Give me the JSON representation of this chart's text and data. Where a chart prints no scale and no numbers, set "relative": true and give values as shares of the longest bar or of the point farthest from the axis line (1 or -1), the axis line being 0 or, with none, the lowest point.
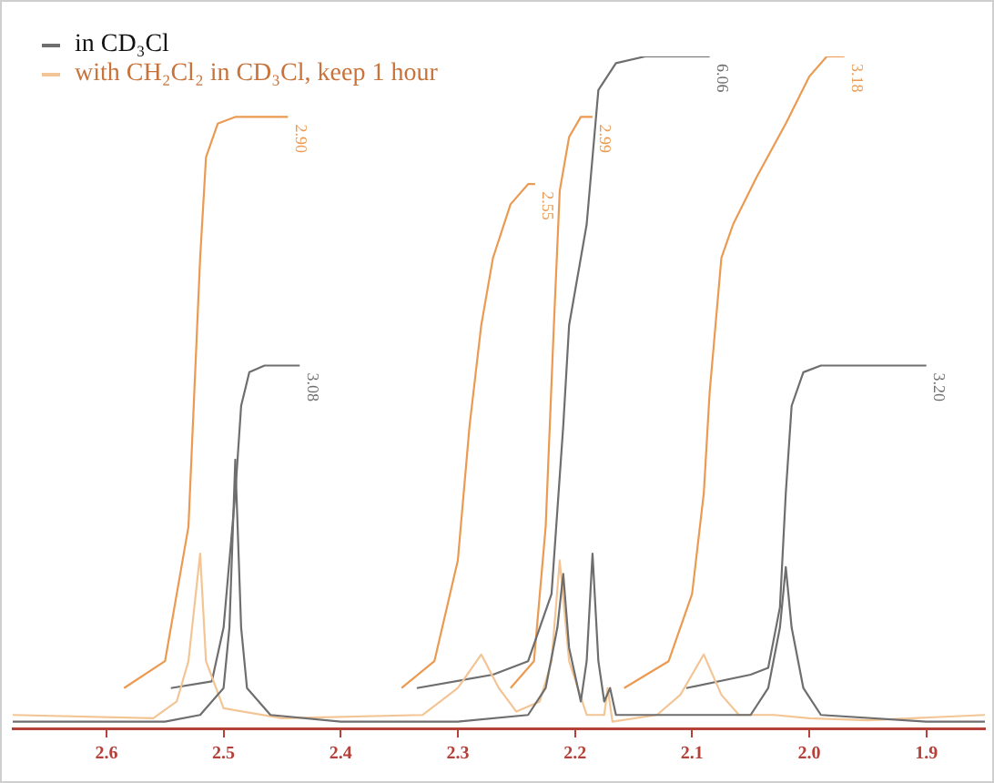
{
  "chart_data": {
    "type": "line",
    "relative": true,
    "legend": "top left",
    "xlim": [
      2.68,
      1.85
    ],
    "xticks": [
      2.6,
      2.5,
      2.4,
      2.3,
      2.2,
      2.1,
      {
        "value": 2,
        "label": "2.0"
      },
      1.9
    ],
    "series": [
      {
        "name": "in CD₃Cl",
        "color": "#6e6e6e",
        "x": [
          2.68,
          2.55,
          2.52,
          2.5,
          2.495,
          2.49,
          2.485,
          2.48,
          2.46,
          2.4,
          2.3,
          2.24,
          2.225,
          2.215,
          2.21,
          2.205,
          2.195,
          2.19,
          2.185,
          2.18,
          2.175,
          2.17,
          2.165,
          2.12,
          2.05,
          2.035,
          2.025,
          2.02,
          2.015,
          2.005,
          1.99,
          1.9,
          1.85
        ],
        "values": [
          0.01,
          0.01,
          0.02,
          0.06,
          0.15,
          0.4,
          0.15,
          0.06,
          0.02,
          0.01,
          0.01,
          0.02,
          0.06,
          0.15,
          0.23,
          0.12,
          0.04,
          0.1,
          0.26,
          0.1,
          0.04,
          0.06,
          0.02,
          0.02,
          0.02,
          0.06,
          0.15,
          0.24,
          0.15,
          0.06,
          0.02,
          0.01,
          0.01
        ]
      },
      {
        "name": "with CH₂Cl₂ in CD₃Cl, keep 1 hour",
        "color": "#f3c595",
        "x": [
          2.68,
          2.56,
          2.54,
          2.53,
          2.52,
          2.515,
          2.5,
          2.45,
          2.33,
          2.3,
          2.28,
          2.265,
          2.25,
          2.23,
          2.22,
          2.213,
          2.205,
          2.19,
          2.175,
          2.172,
          2.168,
          2.13,
          2.11,
          2.09,
          2.075,
          2.06,
          2.03,
          2.0,
          1.95,
          1.85
        ],
        "values": [
          0.02,
          0.015,
          0.04,
          0.1,
          0.26,
          0.1,
          0.03,
          0.015,
          0.02,
          0.06,
          0.11,
          0.06,
          0.025,
          0.04,
          0.1,
          0.25,
          0.1,
          0.02,
          0.02,
          0.06,
          0.01,
          0.02,
          0.05,
          0.11,
          0.05,
          0.02,
          0.02,
          0.015,
          0.012,
          0.02
        ]
      },
      {
        "color": "#6e6e6e",
        "x": [
          2.545,
          2.51,
          2.5,
          2.49,
          2.485,
          2.478,
          2.465,
          2.435
        ],
        "values": [
          0.06,
          0.07,
          0.15,
          0.35,
          0.48,
          0.53,
          0.54,
          0.54
        ]
      },
      {
        "color": "#6e6e6e",
        "x": [
          2.335,
          2.27,
          2.24,
          2.22,
          2.21,
          2.205,
          2.19,
          2.18,
          2.165,
          2.14,
          2.085
        ],
        "values": [
          0.06,
          0.08,
          0.1,
          0.2,
          0.45,
          0.6,
          0.75,
          0.95,
          0.99,
          1,
          1
        ]
      },
      {
        "color": "#6e6e6e",
        "x": [
          2.105,
          2.05,
          2.035,
          2.025,
          2.02,
          2.015,
          2.005,
          1.99,
          1.9
        ],
        "values": [
          0.06,
          0.08,
          0.09,
          0.18,
          0.35,
          0.48,
          0.53,
          0.54,
          0.54
        ]
      },
      {
        "color": "#eb9a52",
        "x": [
          2.585,
          2.55,
          2.53,
          2.525,
          2.52,
          2.515,
          2.505,
          2.49,
          2.445
        ],
        "values": [
          0.06,
          0.1,
          0.3,
          0.5,
          0.7,
          0.85,
          0.9,
          0.91,
          0.91
        ]
      },
      {
        "color": "#eb9a52",
        "x": [
          2.348,
          2.32,
          2.3,
          2.29,
          2.28,
          2.27,
          2.255,
          2.24,
          2.234
        ],
        "values": [
          0.06,
          0.1,
          0.25,
          0.45,
          0.6,
          0.7,
          0.78,
          0.81,
          0.81
        ]
      },
      {
        "color": "#eb9a52",
        "x": [
          2.255,
          2.235,
          2.225,
          2.218,
          2.213,
          2.205,
          2.195,
          2.185
        ],
        "values": [
          0.06,
          0.1,
          0.3,
          0.6,
          0.8,
          0.88,
          0.91,
          0.91
        ]
      },
      {
        "color": "#eb9a52",
        "x": [
          2.158,
          2.12,
          2.1,
          2.09,
          2.085,
          2.075,
          2.065,
          2.045,
          2.02,
          2.0,
          1.985,
          1.97
        ],
        "values": [
          0.06,
          0.1,
          0.2,
          0.35,
          0.5,
          0.7,
          0.75,
          0.82,
          0.9,
          0.97,
          1,
          1
        ]
      }
    ],
    "annotations": [
      {
        "text": "3.08",
        "x": 2.435,
        "y": 0.54
      },
      {
        "text": "6.06",
        "x": 2.085,
        "y": 1
      },
      {
        "text": "3.20",
        "x": 1.9,
        "y": 0.54
      },
      {
        "text": "2.90",
        "x": 2.445,
        "y": 0.91
      },
      {
        "text": "2.55",
        "x": 2.234,
        "y": 0.81
      },
      {
        "text": "2.99",
        "x": 2.185,
        "y": 0.91
      },
      {
        "text": "3.18",
        "x": 1.97,
        "y": 1
      }
    ]
  }
}
